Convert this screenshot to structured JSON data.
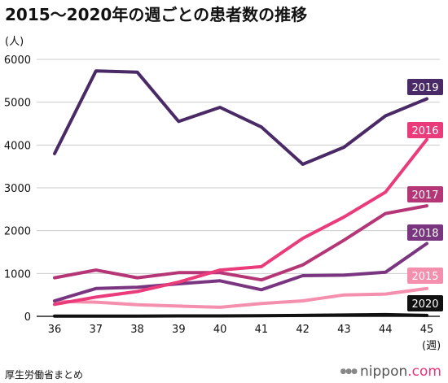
{
  "header": {
    "title": "2015〜2020年の週ごとの患者数の推移"
  },
  "footer": {
    "source": "厚生労働省まとめ",
    "brand": "nippon",
    "brand_suffix": ".com"
  },
  "chart_data": {
    "type": "line",
    "title": "2015〜2020年の週ごとの患者数の推移",
    "ylabel": "(人)",
    "xlabel": "(週)",
    "x": [
      36,
      37,
      38,
      39,
      40,
      41,
      42,
      43,
      44,
      45
    ],
    "ylim": [
      0,
      6000
    ],
    "yticks": [
      0,
      1000,
      2000,
      3000,
      4000,
      5000,
      6000
    ],
    "grid": true,
    "series": [
      {
        "name": "2019",
        "color": "#4a2a66",
        "values": [
          3800,
          5730,
          5700,
          4550,
          4880,
          4420,
          3550,
          3950,
          4680,
          5080
        ]
      },
      {
        "name": "2016",
        "color": "#ea3b7b",
        "values": [
          280,
          450,
          580,
          800,
          1080,
          1160,
          1820,
          2320,
          2900,
          4130
        ]
      },
      {
        "name": "2017",
        "color": "#b53676",
        "values": [
          900,
          1080,
          900,
          1020,
          1020,
          850,
          1200,
          1780,
          2400,
          2580
        ]
      },
      {
        "name": "2018",
        "color": "#7a3580",
        "values": [
          360,
          650,
          680,
          760,
          830,
          620,
          950,
          960,
          1030,
          1700
        ]
      },
      {
        "name": "2015",
        "color": "#f58fae",
        "values": [
          350,
          330,
          270,
          240,
          210,
          300,
          360,
          500,
          520,
          650
        ]
      },
      {
        "name": "2020",
        "color": "#111111",
        "values": [
          5,
          5,
          5,
          10,
          10,
          15,
          20,
          30,
          40,
          20
        ]
      }
    ]
  }
}
